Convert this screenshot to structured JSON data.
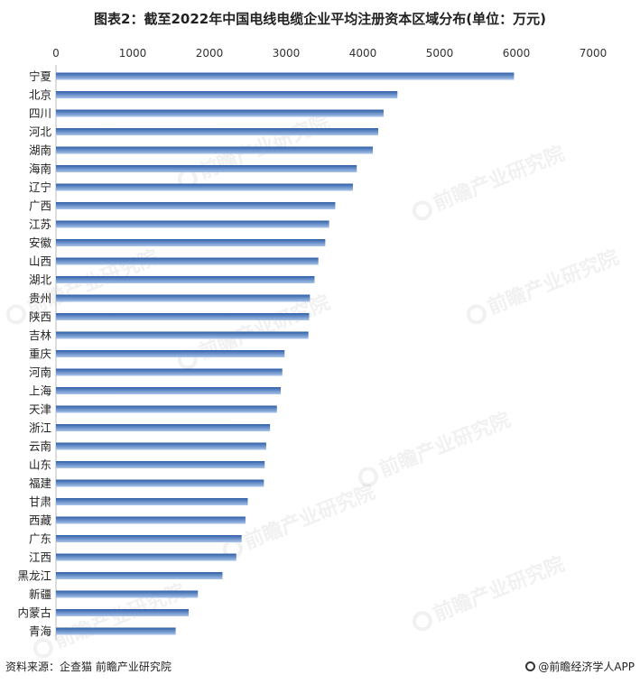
{
  "title": "图表2：截至2022年中国电线电缆企业平均注册资本区域分布(单位：万元)",
  "source": "资料来源：企查猫 前瞻产业研究院",
  "brand": "@前瞻经济学人APP",
  "watermark": "前瞻产业研究院",
  "colors": {
    "bar_dark": "#2f5fa8",
    "bar_light": "#a9c4ea",
    "text": "#222222"
  },
  "chart_data": {
    "type": "bar",
    "orientation": "horizontal",
    "categories": [
      "宁夏",
      "北京",
      "四川",
      "河北",
      "湖南",
      "海南",
      "辽宁",
      "广西",
      "江苏",
      "安徽",
      "山西",
      "湖北",
      "贵州",
      "陕西",
      "吉林",
      "重庆",
      "河南",
      "上海",
      "天津",
      "浙江",
      "云南",
      "山东",
      "福建",
      "甘肃",
      "西藏",
      "广东",
      "江西",
      "黑龙江",
      "新疆",
      "内蒙古",
      "青海"
    ],
    "values": [
      5970,
      4450,
      4270,
      4200,
      4130,
      3920,
      3870,
      3640,
      3560,
      3510,
      3420,
      3370,
      3310,
      3300,
      3290,
      2980,
      2950,
      2930,
      2880,
      2790,
      2740,
      2720,
      2710,
      2500,
      2470,
      2420,
      2350,
      2170,
      1850,
      1730,
      1560
    ],
    "xlim": [
      0,
      7000
    ],
    "xticks": [
      0,
      1000,
      2000,
      3000,
      4000,
      5000,
      6000,
      7000
    ],
    "grid": false,
    "legend": "none"
  }
}
